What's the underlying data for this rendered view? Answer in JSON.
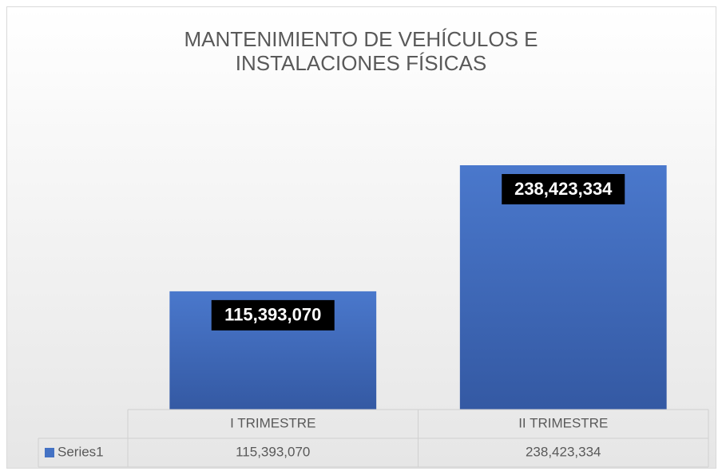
{
  "chart_data": {
    "type": "bar",
    "title": "MANTENIMIENTO DE VEHÍCULOS E INSTALACIONES FÍSICAS",
    "categories": [
      "I TRIMESTRE",
      "II TRIMESTRE"
    ],
    "series": [
      {
        "name": "Series1",
        "color": "#4472c4",
        "values": [
          115393070,
          238423334
        ],
        "value_labels": [
          "115,393,070",
          "238,423,334"
        ]
      }
    ],
    "data_table": true
  }
}
